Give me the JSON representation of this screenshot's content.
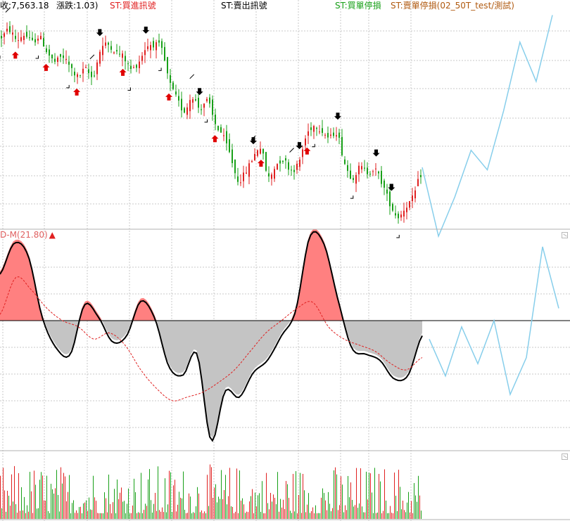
{
  "header": {
    "close_label": "收:7,563.18",
    "change_label": "漲跌:1.03)",
    "buy_signal_label": "ST:買進訊號",
    "sell_signal_label": "ST:賣出訊號",
    "buy_stop_label": "ST:買單停損",
    "sell_stop_label": "ST:賣單停損(02_50T_test/測試)"
  },
  "oscillator": {
    "label": "D-M(21.80)",
    "arrow": "▲"
  },
  "colors": {
    "up": "#e02020",
    "down": "#18a018",
    "grid": "#c8c8c8",
    "fill_positive": "#ff8080",
    "fill_negative": "#c4c4c4",
    "forecast": "#87ceeb",
    "buy_label": "#e02020",
    "sell_label": "#000000",
    "buy_stop_label": "#18a018",
    "sell_stop_label": "#b05a10",
    "main_line": "#000000",
    "signal_line": "#e02020"
  },
  "chart_data": [
    {
      "type": "candlestick",
      "name": "price",
      "close": [
        9.2,
        9.5,
        9.1,
        9.3,
        9.0,
        9.2,
        8.6,
        8.2,
        8.4,
        8.0,
        7.6,
        7.9,
        7.6,
        8.7,
        8.9,
        8.6,
        8.4,
        7.9,
        8.2,
        8.8,
        8.9,
        8.7,
        7.4,
        6.7,
        6.2,
        6.8,
        6.3,
        6.6,
        5.7,
        5.2,
        4.4,
        3.4,
        3.7,
        4.3,
        4.7,
        3.5,
        4.0,
        4.2,
        3.8,
        4.1,
        5.2,
        5.6,
        5.4,
        5.1,
        5.3,
        4.1,
        3.5,
        3.9,
        3.7,
        3.8,
        3.2,
        2.4,
        1.9,
        2.3,
        2.7,
        3.6
      ],
      "buy_signals": [
        2,
        6,
        10,
        16,
        22,
        28,
        34,
        40
      ],
      "sell_signals": [
        13,
        19,
        26,
        33,
        39,
        44,
        49,
        51
      ],
      "buy_stops": [
        1,
        12,
        25,
        33,
        38
      ],
      "sell_stops": [
        0,
        5,
        9,
        17,
        21,
        27,
        41,
        46,
        52
      ],
      "forecast": [
        3.9,
        1.1,
        2.7,
        4.6,
        3.8,
        6.2,
        9.0,
        7.4,
        10.1
      ]
    },
    {
      "type": "line",
      "name": "D-M",
      "value": 21.8,
      "series": [
        {
          "values": [
            40,
            65,
            55,
            5,
            -20,
            -25,
            15,
            5,
            -15,
            -10,
            18,
            4,
            -35,
            -42,
            -25,
            -95,
            -55,
            -60,
            -40,
            -30,
            -10,
            10,
            70,
            65,
            20,
            -20,
            -25,
            -30,
            -45,
            -42,
            -10
          ]
        },
        {
          "values": [
            5,
            35,
            25,
            10,
            0,
            -5,
            -15,
            -10,
            -20,
            -40,
            -55,
            -65,
            -62,
            -58,
            -50,
            -40,
            -25,
            -10,
            0,
            10,
            15,
            -5,
            -15,
            -20,
            -25,
            -35,
            -40,
            -30
          ]
        }
      ],
      "forecast": [
        -15,
        -45,
        -5,
        -35,
        0,
        -60,
        -30,
        60,
        10
      ]
    },
    {
      "type": "bar",
      "name": "volume",
      "count": 300
    }
  ]
}
